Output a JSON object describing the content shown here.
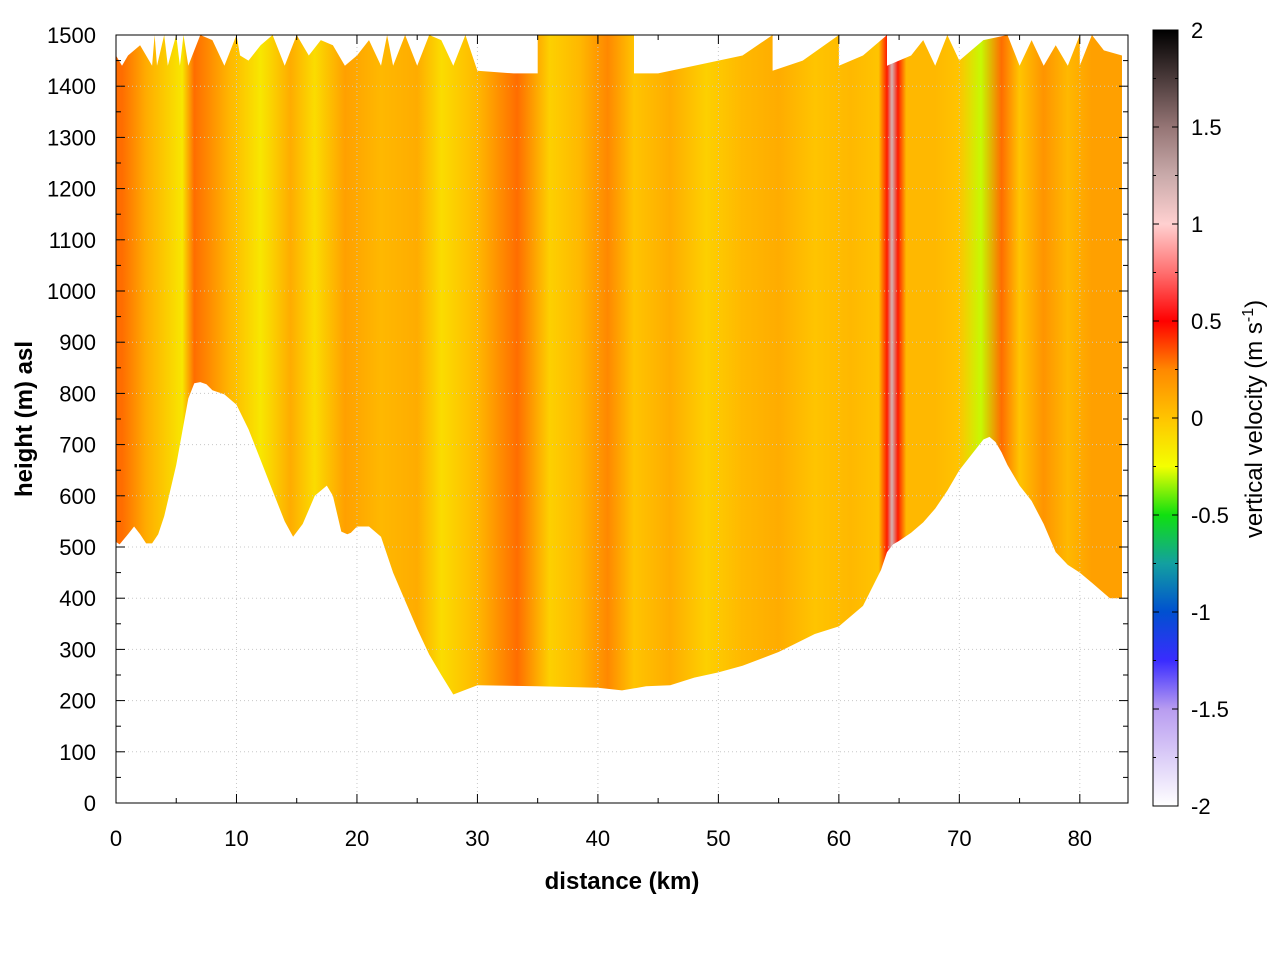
{
  "chart_data": {
    "type": "heatmap",
    "title": "",
    "xlabel": "distance (km)",
    "ylabel": "height (m) asl",
    "xlim": [
      0,
      84
    ],
    "ylim": [
      0,
      1500
    ],
    "x_ticks": [
      0,
      10,
      20,
      30,
      40,
      50,
      60,
      70,
      80
    ],
    "y_ticks": [
      0,
      100,
      200,
      300,
      400,
      500,
      600,
      700,
      800,
      900,
      1000,
      1100,
      1200,
      1300,
      1400,
      1500
    ],
    "grid": true,
    "colorbar": {
      "label_main": "vertical velocity (m s",
      "label_sup": "-1",
      "label_end": ")",
      "range": [
        -2,
        2
      ],
      "ticks": [
        "-2",
        "-1.5",
        "-1",
        "-0.5",
        "0",
        "0.5",
        "1",
        "1.5",
        "2"
      ],
      "stops": [
        {
          "v": -2.0,
          "color": "#ffffff"
        },
        {
          "v": -1.5,
          "color": "#b89cf0"
        },
        {
          "v": -1.25,
          "color": "#3a2cff"
        },
        {
          "v": -1.0,
          "color": "#0050d0"
        },
        {
          "v": -0.75,
          "color": "#13a0a0"
        },
        {
          "v": -0.5,
          "color": "#10e010"
        },
        {
          "v": -0.25,
          "color": "#f4ff00"
        },
        {
          "v": 0.0,
          "color": "#ffc400"
        },
        {
          "v": 0.25,
          "color": "#ff8800"
        },
        {
          "v": 0.5,
          "color": "#ff0000"
        },
        {
          "v": 0.75,
          "color": "#ff6f6f"
        },
        {
          "v": 1.0,
          "color": "#ffd0d0"
        },
        {
          "v": 1.25,
          "color": "#c9aaaa"
        },
        {
          "v": 1.5,
          "color": "#957575"
        },
        {
          "v": 2.0,
          "color": "#000000"
        }
      ]
    },
    "terrain_bottom": [
      [
        0,
        510
      ],
      [
        0.3,
        505
      ],
      [
        1,
        525
      ],
      [
        1.5,
        540
      ],
      [
        2,
        525
      ],
      [
        2.5,
        507
      ],
      [
        3,
        507
      ],
      [
        3.5,
        525
      ],
      [
        4,
        560
      ],
      [
        5,
        660
      ],
      [
        6,
        790
      ],
      [
        6.5,
        820
      ],
      [
        7,
        822
      ],
      [
        7.5,
        818
      ],
      [
        8,
        806
      ],
      [
        9,
        798
      ],
      [
        10,
        778
      ],
      [
        11,
        730
      ],
      [
        12,
        670
      ],
      [
        13,
        610
      ],
      [
        14,
        550
      ],
      [
        14.7,
        520
      ],
      [
        15.5,
        545
      ],
      [
        16.5,
        600
      ],
      [
        17.5,
        620
      ],
      [
        18,
        600
      ],
      [
        18.7,
        530
      ],
      [
        19.2,
        525
      ],
      [
        19.5,
        528
      ],
      [
        20,
        540
      ],
      [
        21,
        540
      ],
      [
        22,
        520
      ],
      [
        23,
        450
      ],
      [
        24,
        395
      ],
      [
        25,
        340
      ],
      [
        26,
        290
      ],
      [
        27,
        250
      ],
      [
        28,
        212
      ],
      [
        30,
        230
      ],
      [
        35,
        228
      ],
      [
        40,
        225
      ],
      [
        42,
        220
      ],
      [
        44,
        228
      ],
      [
        46,
        230
      ],
      [
        48,
        245
      ],
      [
        50,
        255
      ],
      [
        52,
        268
      ],
      [
        55,
        295
      ],
      [
        58,
        330
      ],
      [
        60,
        345
      ],
      [
        62,
        385
      ],
      [
        63.5,
        455
      ],
      [
        64,
        490
      ],
      [
        64.5,
        505
      ],
      [
        65,
        512
      ],
      [
        66,
        528
      ],
      [
        67,
        548
      ],
      [
        68,
        575
      ],
      [
        69,
        610
      ],
      [
        70,
        650
      ],
      [
        71,
        680
      ],
      [
        72,
        710
      ],
      [
        72.5,
        715
      ],
      [
        73,
        705
      ],
      [
        73.5,
        685
      ],
      [
        74,
        660
      ],
      [
        75,
        620
      ],
      [
        76,
        590
      ],
      [
        77,
        545
      ],
      [
        78,
        490
      ],
      [
        79,
        465
      ],
      [
        80,
        450
      ],
      [
        81,
        430
      ],
      [
        82,
        410
      ],
      [
        82.5,
        400
      ],
      [
        83.5,
        400
      ]
    ],
    "data_top": [
      [
        0,
        1460
      ],
      [
        0.5,
        1440
      ],
      [
        1,
        1460
      ],
      [
        2,
        1480
      ],
      [
        3,
        1440
      ],
      [
        3.2,
        1500
      ],
      [
        3.4,
        1440
      ],
      [
        4,
        1500
      ],
      [
        4.3,
        1440
      ],
      [
        5,
        1500
      ],
      [
        5.3,
        1440
      ],
      [
        5.6,
        1500
      ],
      [
        6,
        1440
      ],
      [
        7,
        1500
      ],
      [
        8,
        1490
      ],
      [
        9,
        1440
      ],
      [
        10,
        1500
      ],
      [
        10.3,
        1460
      ],
      [
        11,
        1450
      ],
      [
        12,
        1480
      ],
      [
        13,
        1500
      ],
      [
        14,
        1440
      ],
      [
        15,
        1500
      ],
      [
        16,
        1460
      ],
      [
        17,
        1490
      ],
      [
        18,
        1480
      ],
      [
        19,
        1440
      ],
      [
        20,
        1460
      ],
      [
        21,
        1490
      ],
      [
        22,
        1440
      ],
      [
        22.5,
        1500
      ],
      [
        23,
        1440
      ],
      [
        24,
        1500
      ],
      [
        25,
        1440
      ],
      [
        26,
        1500
      ],
      [
        27,
        1490
      ],
      [
        28,
        1440
      ],
      [
        29,
        1500
      ],
      [
        30,
        1430
      ],
      [
        33,
        1425
      ],
      [
        35,
        1425
      ],
      [
        35,
        1500
      ],
      [
        43,
        1500
      ],
      [
        43,
        1425
      ],
      [
        45,
        1425
      ],
      [
        48,
        1440
      ],
      [
        52,
        1460
      ],
      [
        54.5,
        1500
      ],
      [
        54.5,
        1430
      ],
      [
        57,
        1450
      ],
      [
        60,
        1500
      ],
      [
        60,
        1440
      ],
      [
        62,
        1460
      ],
      [
        64,
        1500
      ],
      [
        64,
        1440
      ],
      [
        66,
        1460
      ],
      [
        67,
        1490
      ],
      [
        68,
        1440
      ],
      [
        69,
        1500
      ],
      [
        70,
        1450
      ],
      [
        72,
        1490
      ],
      [
        74,
        1500
      ],
      [
        75,
        1440
      ],
      [
        76,
        1490
      ],
      [
        77,
        1440
      ],
      [
        78,
        1480
      ],
      [
        79,
        1440
      ],
      [
        80,
        1500
      ],
      [
        80,
        1440
      ],
      [
        81,
        1500
      ],
      [
        82,
        1470
      ],
      [
        83.5,
        1460
      ]
    ],
    "velocity_columns": [
      {
        "x": 0.5,
        "w": 0.3
      },
      {
        "x": 2.5,
        "w": 0.1
      },
      {
        "x": 5.5,
        "w": -0.15
      },
      {
        "x": 6.5,
        "w": 0.3
      },
      {
        "x": 9.5,
        "w": 0.05
      },
      {
        "x": 12,
        "w": -0.15
      },
      {
        "x": 14.5,
        "w": 0.1
      },
      {
        "x": 16.5,
        "w": -0.1
      },
      {
        "x": 19,
        "w": 0.15
      },
      {
        "x": 22,
        "w": 0.05
      },
      {
        "x": 25,
        "w": 0.1
      },
      {
        "x": 27,
        "w": -0.1
      },
      {
        "x": 30,
        "w": 0.05
      },
      {
        "x": 33.3,
        "w": 0.3
      },
      {
        "x": 36,
        "w": -0.05
      },
      {
        "x": 38.5,
        "w": 0.05
      },
      {
        "x": 40.8,
        "w": 0.25
      },
      {
        "x": 43,
        "w": 0.0
      },
      {
        "x": 46,
        "w": 0.1
      },
      {
        "x": 49,
        "w": -0.05
      },
      {
        "x": 52,
        "w": 0.05
      },
      {
        "x": 55,
        "w": 0.1
      },
      {
        "x": 58,
        "w": 0.0
      },
      {
        "x": 61,
        "w": 0.05
      },
      {
        "x": 63.3,
        "w": 0.0
      },
      {
        "x": 64,
        "w": 0.45
      },
      {
        "x": 64.4,
        "w": 1.2
      },
      {
        "x": 64.9,
        "w": 0.45
      },
      {
        "x": 65.6,
        "w": 0.05
      },
      {
        "x": 68,
        "w": 0.05
      },
      {
        "x": 70,
        "w": 0.0
      },
      {
        "x": 71.8,
        "w": -0.3
      },
      {
        "x": 73.5,
        "w": 0.3
      },
      {
        "x": 75,
        "w": 0.0
      },
      {
        "x": 77,
        "w": 0.2
      },
      {
        "x": 79,
        "w": 0.05
      },
      {
        "x": 81,
        "w": 0.15
      },
      {
        "x": 83.5,
        "w": 0.15
      }
    ]
  }
}
